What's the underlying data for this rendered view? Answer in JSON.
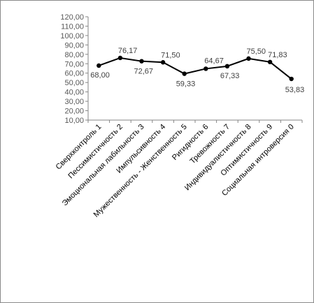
{
  "chart_data": {
    "type": "line",
    "categories": [
      "Сверхконтроль 1",
      "Пессимистичность 2",
      "Эмоциональная лабильность 3",
      "Импульсивность 4",
      "Мужественность - Женственность 5",
      "Ригидность 6",
      "Тревожность 7",
      "Индивидуалистичность 8",
      "Оптимистичность 9",
      "Социальная интроверсия 0"
    ],
    "series": [
      {
        "values": [
          68.0,
          76.17,
          72.67,
          71.5,
          59.33,
          64.67,
          67.33,
          75.5,
          71.83,
          53.83
        ],
        "labels": [
          "68,00",
          "76,17",
          "72,67",
          "71,50",
          "59,33",
          "64,67",
          "67,33",
          "75,50",
          "71,83",
          "53,83"
        ]
      }
    ],
    "ylim": [
      10,
      120
    ],
    "ytick_step": 10,
    "ytick_labels": [
      "10,00",
      "20,00",
      "30,00",
      "40,00",
      "50,00",
      "60,00",
      "70,00",
      "80,00",
      "90,00",
      "100,00",
      "110,00",
      "120,00"
    ],
    "grid": false,
    "legend": "none",
    "colors": {
      "line": "#000000",
      "marker": "#000000",
      "axis": "#868686"
    }
  }
}
